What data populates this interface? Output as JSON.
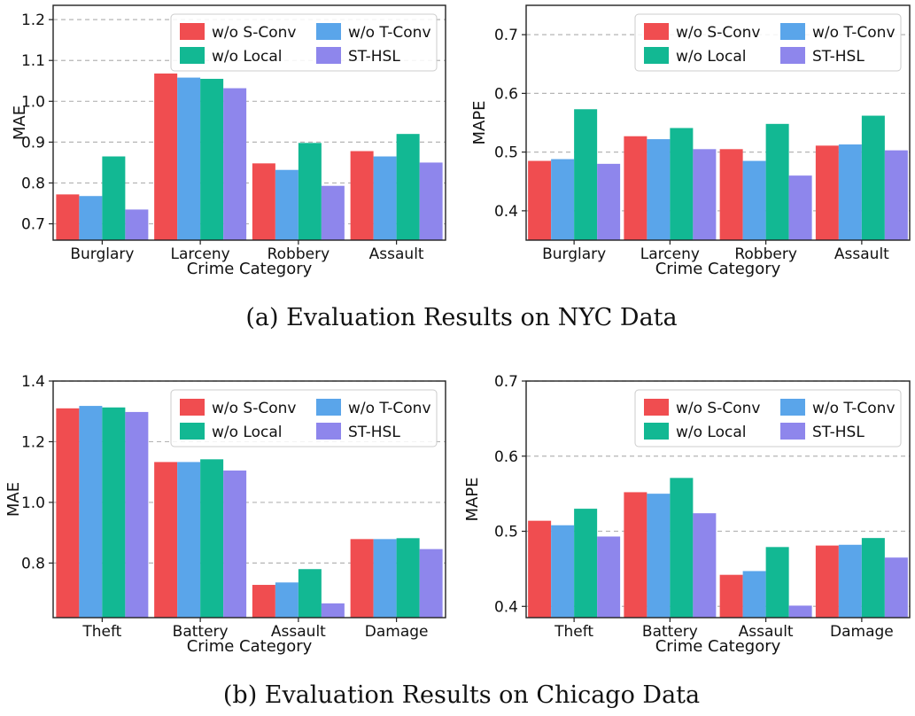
{
  "series_colors": [
    "#f04d50",
    "#5aa5ea",
    "#12b893",
    "#8e86ec"
  ],
  "captions": {
    "a": "(a)  Evaluation Results on NYC Data",
    "b": "(b)  Evaluation Results on Chicago Data"
  },
  "chart_data": [
    {
      "type": "bar",
      "panel": "NYC MAE",
      "categories": [
        "Burglary",
        "Larceny",
        "Robbery",
        "Assault"
      ],
      "xlabel": "Crime Category",
      "ylabel": "MAE",
      "ylim": [
        0.66,
        1.235
      ],
      "yticks": [
        "0.7",
        "0.8",
        "0.9",
        "1.0",
        "1.1",
        "1.2"
      ],
      "grid": true,
      "legend_position": "top-right",
      "series": [
        {
          "name": "w/o S-Conv",
          "values": [
            0.772,
            1.068,
            0.848,
            0.878
          ]
        },
        {
          "name": "w/o T-Conv",
          "values": [
            0.768,
            1.058,
            0.832,
            0.865
          ]
        },
        {
          "name": "w/o Local",
          "values": [
            0.865,
            1.055,
            0.898,
            0.92
          ]
        },
        {
          "name": "ST-HSL",
          "values": [
            0.735,
            1.032,
            0.793,
            0.85
          ]
        }
      ]
    },
    {
      "type": "bar",
      "panel": "NYC MAPE",
      "categories": [
        "Burglary",
        "Larceny",
        "Robbery",
        "Assault"
      ],
      "xlabel": "Crime Category",
      "ylabel": "MAPE",
      "ylim": [
        0.35,
        0.75
      ],
      "yticks": [
        "0.4",
        "0.5",
        "0.6",
        "0.7"
      ],
      "grid": true,
      "legend_position": "top-right",
      "series": [
        {
          "name": "w/o S-Conv",
          "values": [
            0.485,
            0.527,
            0.505,
            0.511
          ]
        },
        {
          "name": "w/o T-Conv",
          "values": [
            0.488,
            0.522,
            0.485,
            0.513
          ]
        },
        {
          "name": "w/o Local",
          "values": [
            0.573,
            0.541,
            0.548,
            0.562
          ]
        },
        {
          "name": "ST-HSL",
          "values": [
            0.48,
            0.505,
            0.46,
            0.503
          ]
        }
      ]
    },
    {
      "type": "bar",
      "panel": "Chicago MAE",
      "categories": [
        "Theft",
        "Battery",
        "Assault",
        "Damage"
      ],
      "xlabel": "Crime Category",
      "ylabel": "MAE",
      "ylim": [
        0.62,
        1.4
      ],
      "yticks": [
        "0.8",
        "1.0",
        "1.2",
        "1.4"
      ],
      "grid": true,
      "legend_position": "top-right",
      "series": [
        {
          "name": "w/o S-Conv",
          "values": [
            1.31,
            1.133,
            0.728,
            0.879
          ]
        },
        {
          "name": "w/o T-Conv",
          "values": [
            1.318,
            1.133,
            0.736,
            0.879
          ]
        },
        {
          "name": "w/o Local",
          "values": [
            1.313,
            1.142,
            0.78,
            0.882
          ]
        },
        {
          "name": "ST-HSL",
          "values": [
            1.298,
            1.105,
            0.667,
            0.846
          ]
        }
      ]
    },
    {
      "type": "bar",
      "panel": "Chicago MAPE",
      "categories": [
        "Theft",
        "Battery",
        "Assault",
        "Damage"
      ],
      "xlabel": "Crime Category",
      "ylabel": "MAPE",
      "ylim": [
        0.385,
        0.7
      ],
      "yticks": [
        "0.4",
        "0.5",
        "0.6",
        "0.7"
      ],
      "grid": true,
      "legend_position": "top-right",
      "series": [
        {
          "name": "w/o S-Conv",
          "values": [
            0.514,
            0.552,
            0.442,
            0.481
          ]
        },
        {
          "name": "w/o T-Conv",
          "values": [
            0.508,
            0.55,
            0.447,
            0.482
          ]
        },
        {
          "name": "w/o Local",
          "values": [
            0.53,
            0.571,
            0.479,
            0.491
          ]
        },
        {
          "name": "ST-HSL",
          "values": [
            0.493,
            0.524,
            0.401,
            0.465
          ]
        }
      ]
    }
  ]
}
